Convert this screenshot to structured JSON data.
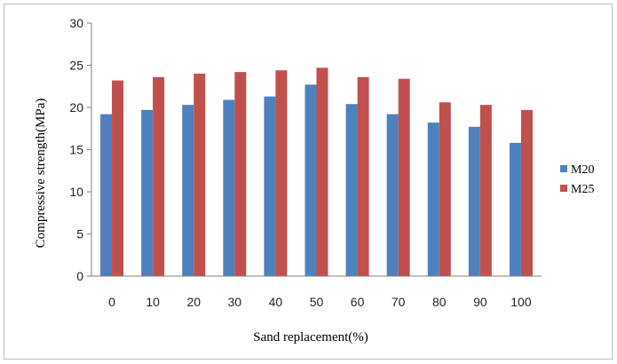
{
  "chart_data": {
    "type": "bar",
    "title": "",
    "xlabel": "Sand replacement(%)",
    "ylabel": "Compressive strength(MPa)",
    "categories": [
      "0",
      "10",
      "20",
      "30",
      "40",
      "50",
      "60",
      "70",
      "80",
      "90",
      "100"
    ],
    "ylim": [
      0,
      30
    ],
    "yticks": [
      "0",
      "5",
      "10",
      "15",
      "20",
      "25",
      "30"
    ],
    "grid": false,
    "legend": "right",
    "series": [
      {
        "name": "M20",
        "color": "#4f81bd",
        "values": [
          19.2,
          19.7,
          20.3,
          20.9,
          21.3,
          22.7,
          20.4,
          19.2,
          18.2,
          17.7,
          15.8
        ]
      },
      {
        "name": "M25",
        "color": "#c0504d",
        "values": [
          23.2,
          23.6,
          24.0,
          24.2,
          24.4,
          24.7,
          23.6,
          23.4,
          20.6,
          20.3,
          19.7
        ]
      }
    ]
  }
}
